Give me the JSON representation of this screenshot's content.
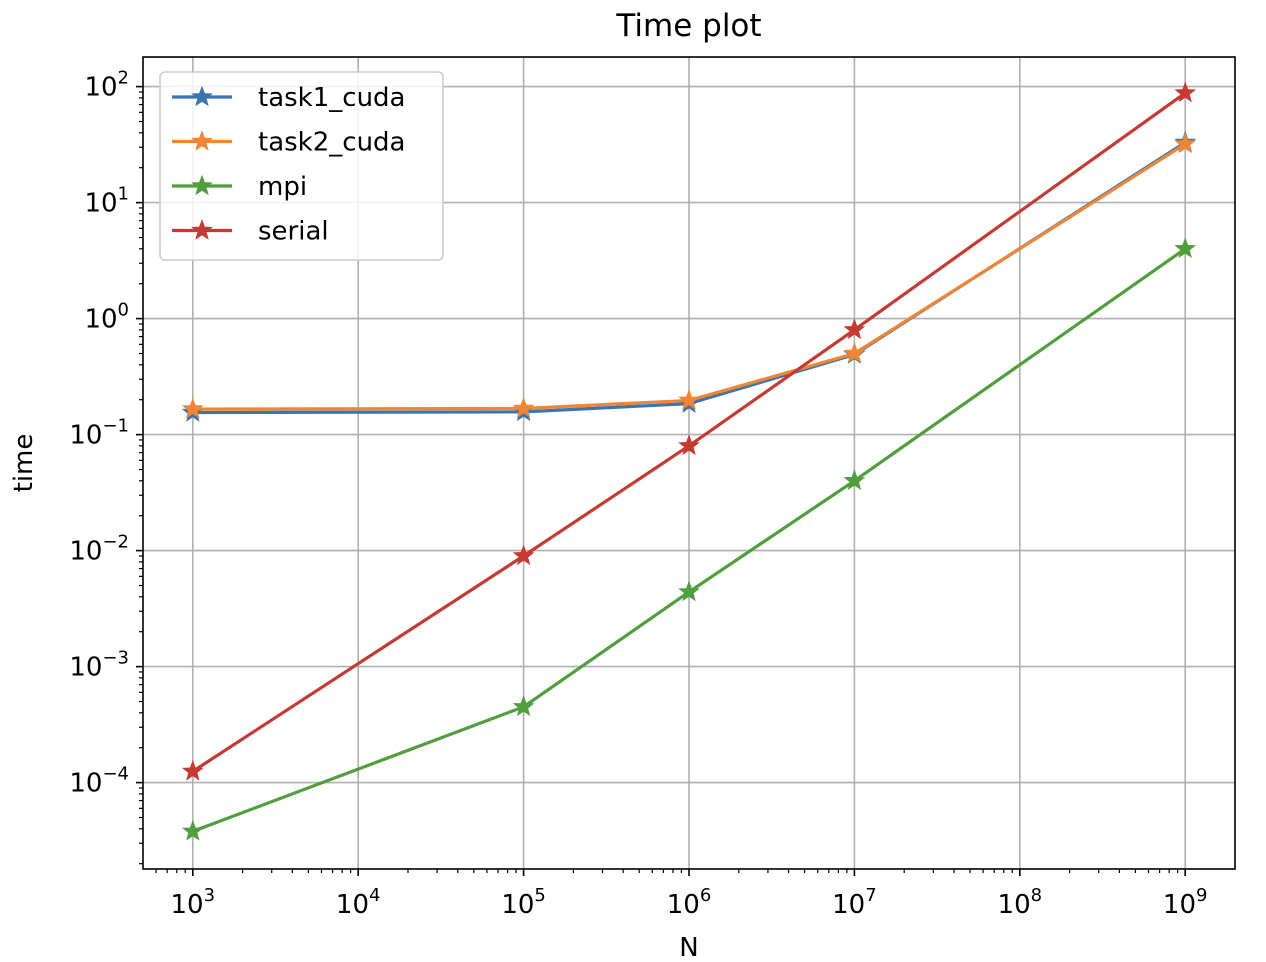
{
  "chart_data": {
    "type": "line",
    "title": "Time plot",
    "xlabel": "N",
    "ylabel": "time",
    "xscale": "log",
    "yscale": "log",
    "xlim": [
      500,
      2000000000
    ],
    "ylim": [
      1.8e-05,
      180
    ],
    "grid": true,
    "legend_position": "top-left",
    "marker": "star",
    "xticks": [
      {
        "value": 1000,
        "base": "10",
        "exp": "3"
      },
      {
        "value": 10000,
        "base": "10",
        "exp": "4"
      },
      {
        "value": 100000,
        "base": "10",
        "exp": "5"
      },
      {
        "value": 1000000,
        "base": "10",
        "exp": "6"
      },
      {
        "value": 10000000,
        "base": "10",
        "exp": "7"
      },
      {
        "value": 100000000,
        "base": "10",
        "exp": "8"
      },
      {
        "value": 1000000000,
        "base": "10",
        "exp": "9"
      }
    ],
    "yticks": [
      {
        "value": 0.0001,
        "base": "10",
        "exp": "−4"
      },
      {
        "value": 0.001,
        "base": "10",
        "exp": "−3"
      },
      {
        "value": 0.01,
        "base": "10",
        "exp": "−2"
      },
      {
        "value": 0.1,
        "base": "10",
        "exp": "−1"
      },
      {
        "value": 1,
        "base": "10",
        "exp": "0"
      },
      {
        "value": 10,
        "base": "10",
        "exp": "1"
      },
      {
        "value": 100,
        "base": "10",
        "exp": "2"
      }
    ],
    "series": [
      {
        "name": "task1_cuda",
        "color": "#3b75af",
        "x": [
          1000,
          100000,
          1000000,
          10000000,
          1000000000
        ],
        "y": [
          0.155,
          0.157,
          0.185,
          0.49,
          33
        ]
      },
      {
        "name": "task2_cuda",
        "color": "#ef8636",
        "x": [
          1000,
          100000,
          1000000,
          10000000,
          1000000000
        ],
        "y": [
          0.166,
          0.168,
          0.197,
          0.5,
          32
        ]
      },
      {
        "name": "mpi",
        "color": "#519e3e",
        "x": [
          1000,
          100000,
          1000000,
          10000000,
          1000000000
        ],
        "y": [
          3.8e-05,
          0.00045,
          0.0044,
          0.04,
          4.0
        ]
      },
      {
        "name": "serial",
        "color": "#c53a32",
        "x": [
          1000,
          100000,
          1000000,
          10000000,
          1000000000
        ],
        "y": [
          0.000125,
          0.009,
          0.08,
          0.8,
          88
        ]
      }
    ]
  }
}
